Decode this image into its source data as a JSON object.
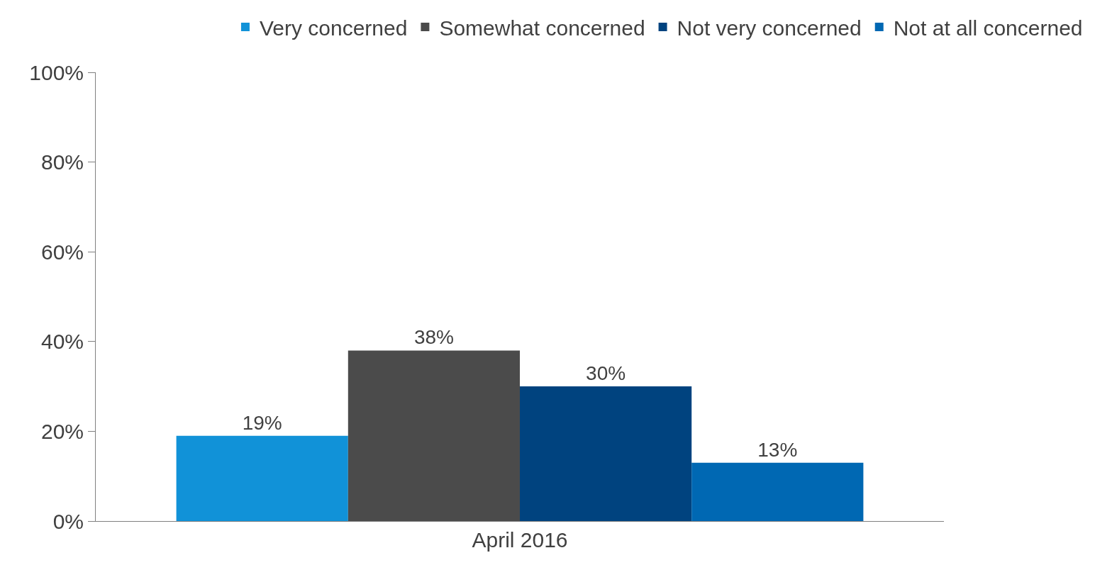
{
  "chart_data": {
    "type": "bar",
    "categories": [
      "April 2016"
    ],
    "series": [
      {
        "name": "Very concerned",
        "color": "#1192d8",
        "values": [
          19
        ],
        "value_labels": [
          "19%"
        ]
      },
      {
        "name": "Somewhat concerned",
        "color": "#4b4b4b",
        "values": [
          38
        ],
        "value_labels": [
          "38%"
        ]
      },
      {
        "name": "Not very concerned",
        "color": "#00437f",
        "values": [
          30
        ],
        "value_labels": [
          "30%"
        ]
      },
      {
        "name": "Not at all concerned",
        "color": "#0068b3",
        "values": [
          13
        ],
        "value_labels": [
          "13%"
        ]
      }
    ],
    "ylim": [
      0,
      100
    ],
    "yticks": [
      {
        "value": 0,
        "label": "0%"
      },
      {
        "value": 20,
        "label": "20%"
      },
      {
        "value": 40,
        "label": "40%"
      },
      {
        "value": 60,
        "label": "60%"
      },
      {
        "value": 80,
        "label": "80%"
      },
      {
        "value": 100,
        "label": "100%"
      }
    ],
    "legend": "top"
  }
}
